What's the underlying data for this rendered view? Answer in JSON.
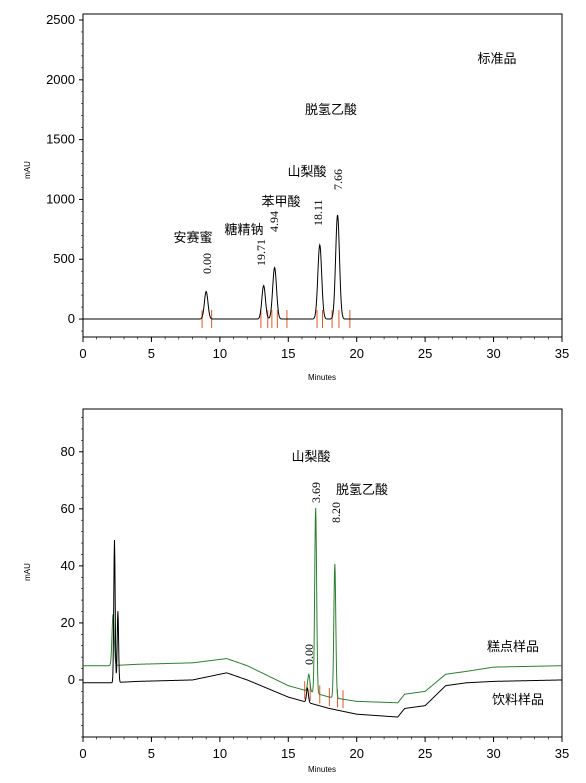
{
  "chart_data": [
    {
      "type": "line",
      "ylabel": "mAU",
      "xlabel": "Minutes",
      "xlim": [
        0,
        35
      ],
      "ylim": [
        -150,
        2550
      ],
      "xticks": [
        0,
        5,
        10,
        15,
        20,
        25,
        30,
        35
      ],
      "yticks": [
        0,
        500,
        1000,
        1500,
        2000,
        2500
      ],
      "series": [
        {
          "color": "#000000",
          "baseline": 0,
          "peaks": [
            {
              "x": 9.0,
              "height": 230,
              "width": 0.13
            },
            {
              "x": 13.2,
              "height": 280,
              "width": 0.13
            },
            {
              "x": 14.0,
              "height": 430,
              "width": 0.14
            },
            {
              "x": 17.3,
              "height": 620,
              "width": 0.14
            },
            {
              "x": 18.6,
              "height": 870,
              "width": 0.14
            }
          ]
        }
      ],
      "peak_marks": [
        8.7,
        9.4,
        13.0,
        13.5,
        13.8,
        14.2,
        14.9,
        17.1,
        17.5,
        18.2,
        18.7,
        19.5
      ],
      "peak_labels": [
        {
          "x": 9.0,
          "value": "0.00",
          "name": "安赛蜜"
        },
        {
          "x": 13.2,
          "value": "19.71",
          "name": "糖精钠"
        },
        {
          "x": 14.0,
          "value": "4.94",
          "name": "苯甲酸"
        },
        {
          "x": 17.3,
          "value": "18.11",
          "name": "山梨酸"
        },
        {
          "x": 18.6,
          "value": "7.66",
          "name": "脱氢乙酸"
        }
      ],
      "annotation": "标准品"
    },
    {
      "type": "line",
      "ylabel": "mAU",
      "xlabel": "Minutes",
      "xlim": [
        0,
        35
      ],
      "ylim": [
        -20,
        95
      ],
      "xticks": [
        0,
        5,
        10,
        15,
        20,
        25,
        30,
        35
      ],
      "yticks": [
        0,
        20,
        40,
        60,
        80
      ],
      "series": [
        {
          "name": "糕点样品",
          "color": "#2e7d32",
          "baseline": [
            [
              0,
              5
            ],
            [
              2,
              5
            ],
            [
              4,
              5.5
            ],
            [
              8,
              6
            ],
            [
              10.5,
              7.5
            ],
            [
              12,
              5
            ],
            [
              15,
              -2
            ],
            [
              18,
              -6
            ],
            [
              20,
              -7.5
            ],
            [
              23,
              -8
            ],
            [
              23.5,
              -5
            ],
            [
              25,
              -4
            ],
            [
              26.5,
              2
            ],
            [
              28,
              3
            ],
            [
              30,
              4.5
            ],
            [
              35,
              5
            ]
          ],
          "peaks": [
            {
              "x": 2.2,
              "height": 18,
              "width": 0.08
            },
            {
              "x": 16.5,
              "height": 6,
              "width": 0.08
            },
            {
              "x": 17.0,
              "height": 65,
              "width": 0.07
            },
            {
              "x": 18.4,
              "height": 47,
              "width": 0.07
            }
          ]
        },
        {
          "name": "饮料样品",
          "color": "#000000",
          "baseline": [
            [
              0,
              -1
            ],
            [
              2,
              -1
            ],
            [
              4,
              -0.5
            ],
            [
              8,
              0
            ],
            [
              10.5,
              2.5
            ],
            [
              12,
              0
            ],
            [
              15,
              -6
            ],
            [
              18,
              -10
            ],
            [
              20,
              -12
            ],
            [
              23,
              -13
            ],
            [
              23.5,
              -10
            ],
            [
              25,
              -9
            ],
            [
              26.5,
              -2
            ],
            [
              28,
              -1
            ],
            [
              30,
              -0.5
            ],
            [
              35,
              0
            ]
          ],
          "peaks": [
            {
              "x": 2.3,
              "height": 50,
              "width": 0.05
            },
            {
              "x": 2.55,
              "height": 25,
              "width": 0.05
            },
            {
              "x": 16.4,
              "height": 5,
              "width": 0.07
            }
          ]
        }
      ],
      "peak_marks": [
        16.2,
        16.6,
        17.3,
        18.0,
        18.6,
        19.0
      ],
      "peak_labels": [
        {
          "x": 16.5,
          "value": "0.00"
        },
        {
          "x": 17.0,
          "value": "3.69",
          "name": "山梨酸"
        },
        {
          "x": 18.4,
          "value": "8.20",
          "name": "脱氢乙酸"
        }
      ],
      "trace_labels": [
        "糕点样品",
        "饮料样品"
      ]
    }
  ]
}
